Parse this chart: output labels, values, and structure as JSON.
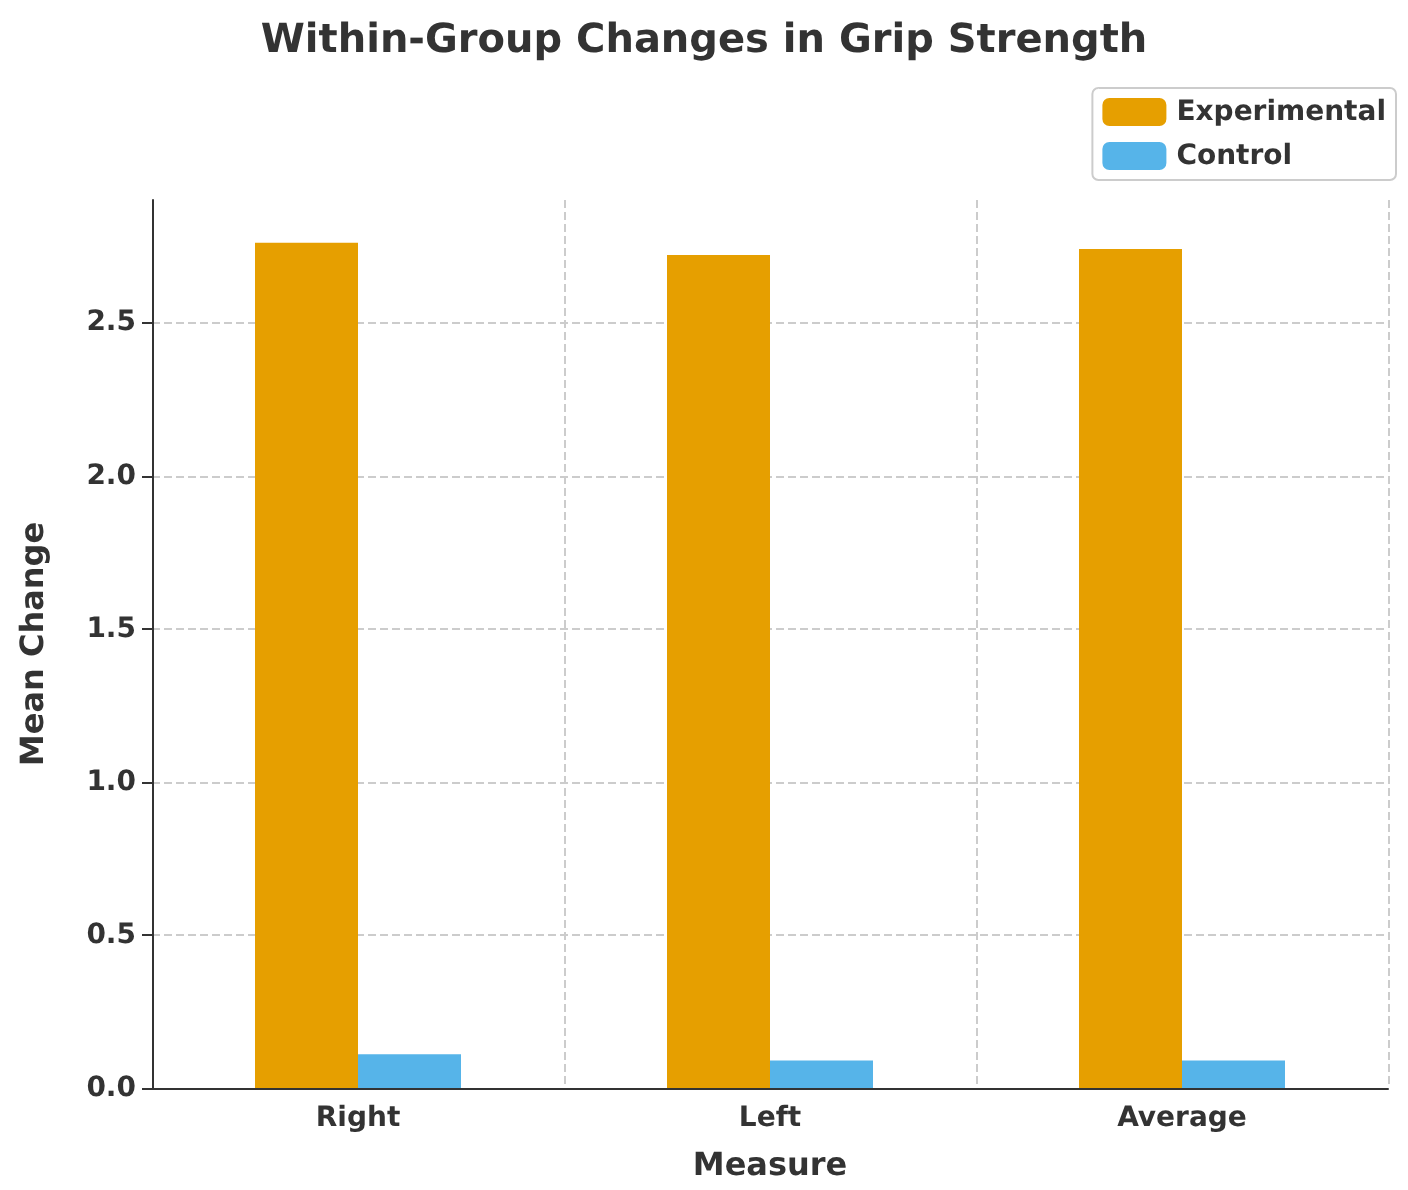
{
  "chart_data": {
    "type": "bar",
    "title": "Within-Group Changes in Grip Strength",
    "xlabel": "Measure",
    "ylabel": "Mean Change",
    "categories": [
      "Right",
      "Left",
      "Average"
    ],
    "series": [
      {
        "name": "Experimental",
        "color": "#e69f00",
        "values": [
          2.76,
          2.72,
          2.74
        ]
      },
      {
        "name": "Control",
        "color": "#56b4e9",
        "values": [
          0.11,
          0.09,
          0.09
        ]
      }
    ],
    "ylim": [
      0,
      2.9
    ],
    "yticks": [
      {
        "value": 0,
        "label": "0.0"
      },
      0.5,
      {
        "value": 1,
        "label": "1.0"
      },
      1.5,
      {
        "value": 2,
        "label": "2.0"
      },
      2.5
    ],
    "grid": true,
    "legend": "top right"
  }
}
